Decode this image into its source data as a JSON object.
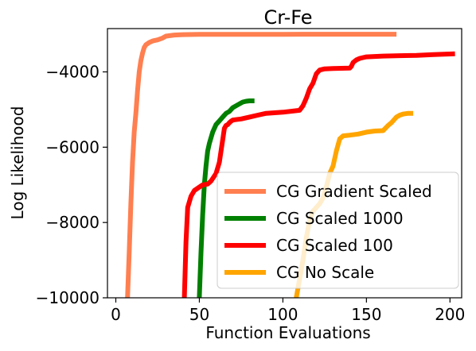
{
  "chart_data": {
    "type": "line",
    "title": "Cr-Fe",
    "xlabel": "Function Evaluations",
    "ylabel": "Log Likelihood",
    "xlim": [
      -5,
      207
    ],
    "ylim": [
      -10000,
      -2850
    ],
    "xticks": [
      0,
      50,
      100,
      150,
      200
    ],
    "yticks": [
      -10000,
      -8000,
      -6000,
      -4000
    ],
    "xtick_labels": [
      "0",
      "50",
      "100",
      "150",
      "200"
    ],
    "ytick_labels": [
      "−10000",
      "−8000",
      "−6000",
      "−4000"
    ],
    "grid": false,
    "legend_position": "lower right",
    "series": [
      {
        "name": "CG Gradient Scaled",
        "color": "#ff7f50",
        "x": [
          7,
          8,
          9,
          10,
          11,
          12,
          13,
          14,
          15,
          16,
          17,
          18,
          20,
          22,
          25,
          28,
          30,
          35,
          40,
          50,
          60,
          80,
          100,
          120,
          140,
          160,
          168
        ],
        "y": [
          -10000,
          -8800,
          -7500,
          -6400,
          -5600,
          -5100,
          -4500,
          -4000,
          -3700,
          -3500,
          -3350,
          -3280,
          -3220,
          -3180,
          -3150,
          -3100,
          -3050,
          -3020,
          -3010,
          -3005,
          -3003,
          -3002,
          -3001,
          -3000,
          -3000,
          -3000,
          -3000
        ]
      },
      {
        "name": "CG Scaled 1000",
        "color": "#008000",
        "x": [
          50,
          51,
          52,
          53,
          54,
          55,
          56,
          58,
          60,
          62,
          64,
          66,
          68,
          70,
          72,
          74,
          76,
          78,
          80,
          82,
          83
        ],
        "y": [
          -10000,
          -8800,
          -7800,
          -7000,
          -6500,
          -6100,
          -5900,
          -5600,
          -5400,
          -5300,
          -5200,
          -5100,
          -5050,
          -4950,
          -4900,
          -4850,
          -4800,
          -4780,
          -4770,
          -4770,
          -4770
        ]
      },
      {
        "name": "CG Scaled 100",
        "color": "#ff0000",
        "x": [
          41,
          42,
          43,
          45,
          47,
          50,
          52,
          55,
          57,
          60,
          62,
          63,
          64,
          65,
          66,
          67,
          68,
          69,
          70,
          73,
          75,
          80,
          85,
          90,
          100,
          110,
          112,
          114,
          116,
          118,
          120,
          122,
          125,
          130,
          140,
          141,
          142,
          144,
          146,
          148,
          150,
          155,
          160,
          170,
          180,
          190,
          203
        ],
        "y": [
          -10000,
          -8500,
          -7600,
          -7300,
          -7150,
          -7060,
          -7000,
          -6980,
          -6900,
          -6700,
          -6400,
          -6100,
          -5800,
          -5500,
          -5420,
          -5400,
          -5350,
          -5310,
          -5280,
          -5260,
          -5250,
          -5200,
          -5150,
          -5100,
          -5070,
          -5020,
          -4900,
          -4700,
          -4450,
          -4300,
          -4050,
          -3950,
          -3920,
          -3910,
          -3900,
          -3850,
          -3750,
          -3680,
          -3640,
          -3620,
          -3600,
          -3590,
          -3580,
          -3570,
          -3560,
          -3540,
          -3520
        ]
      },
      {
        "name": "CG No Scale",
        "color": "#ffa500",
        "x": [
          108,
          110,
          112,
          114,
          116,
          118,
          120,
          122,
          124,
          126,
          128,
          130,
          132,
          134,
          136,
          140,
          145,
          150,
          155,
          160,
          163,
          165,
          167,
          168,
          170,
          172,
          175,
          178
        ],
        "y": [
          -10000,
          -9500,
          -9000,
          -8400,
          -7950,
          -7700,
          -7600,
          -7500,
          -7350,
          -7050,
          -6700,
          -6500,
          -6100,
          -5780,
          -5700,
          -5680,
          -5650,
          -5600,
          -5570,
          -5560,
          -5420,
          -5350,
          -5250,
          -5200,
          -5150,
          -5120,
          -5100,
          -5100
        ]
      }
    ]
  }
}
